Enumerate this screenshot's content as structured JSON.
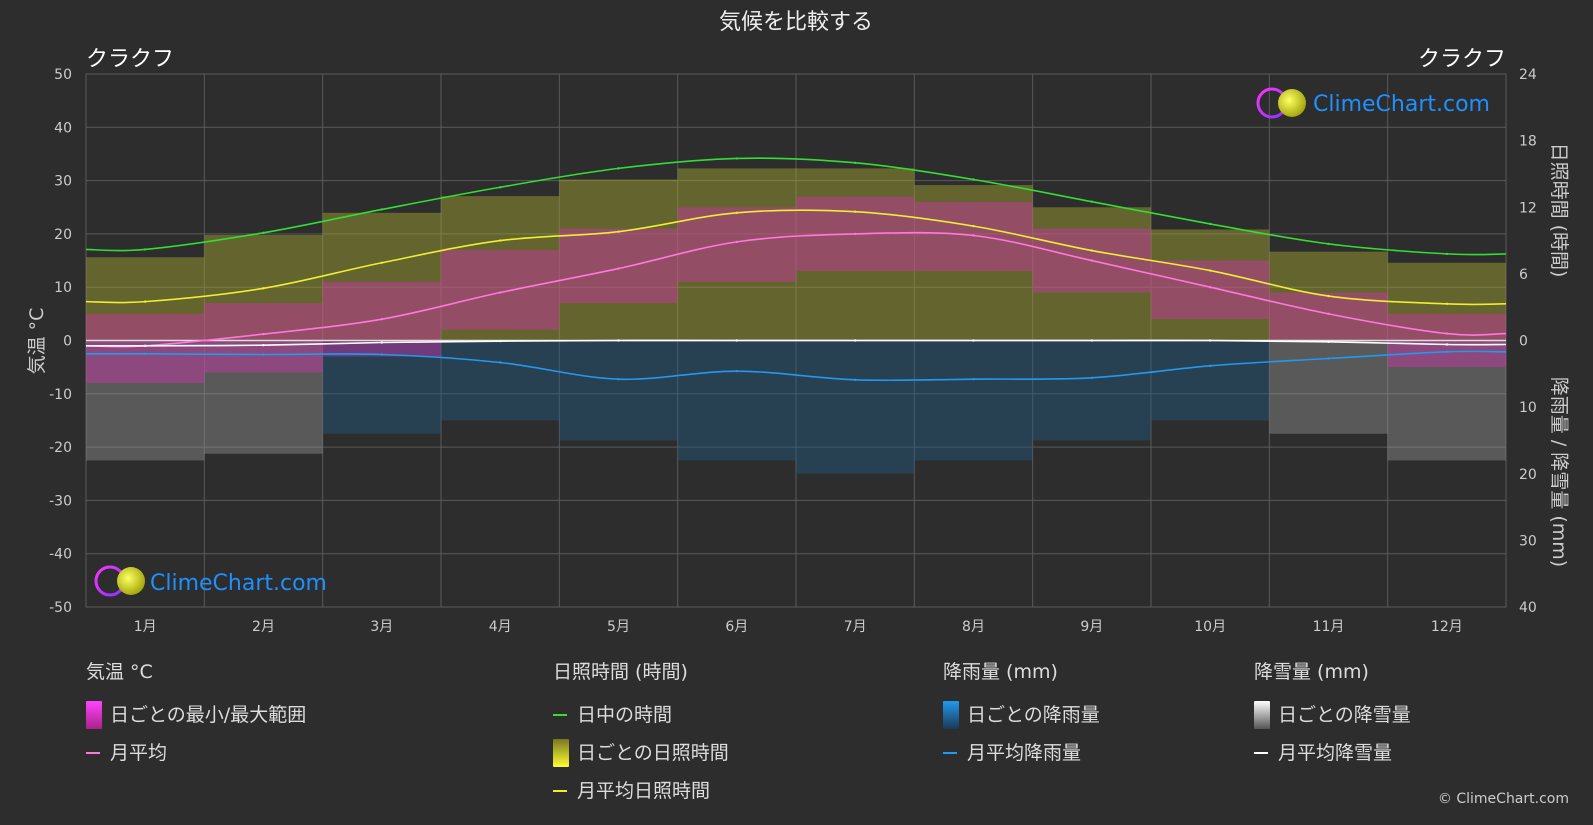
{
  "title": "気候を比較する",
  "location_left": "クラクフ",
  "location_right": "クラクフ",
  "brand": "ClimeChart.com",
  "copyright": "© ClimeChart.com",
  "colors": {
    "background": "#2d2d2d",
    "grid": "#5a5a5a",
    "daylight": "#33dd33",
    "sunshine_avg": "#eeee33",
    "sunshine_daily": "#a8a830",
    "temp_avg": "#ff77dd",
    "temp_range": "#cc33aa",
    "rain_avg": "#2299ee",
    "rain_daily": "#1d5c8a",
    "snow_avg": "#ffffff",
    "snow_daily": "#9a9a9a",
    "brand_text": "#1e90ff"
  },
  "legend": {
    "temp": {
      "heading": "気温 °C",
      "range": "日ごとの最小/最大範囲",
      "avg": "月平均"
    },
    "sun": {
      "heading": "日照時間 (時間)",
      "daylight": "日中の時間",
      "daily": "日ごとの日照時間",
      "avg": "月平均日照時間"
    },
    "rain": {
      "heading": "降雨量 (mm)",
      "daily": "日ごとの降雨量",
      "avg": "月平均降雨量"
    },
    "snow": {
      "heading": "降雪量 (mm)",
      "daily": "日ごとの降雪量",
      "avg": "月平均降雪量"
    }
  },
  "chart_data": {
    "type": "line",
    "title": "気候を比較する",
    "categories": [
      "1月",
      "2月",
      "3月",
      "4月",
      "5月",
      "6月",
      "7月",
      "8月",
      "9月",
      "10月",
      "11月",
      "12月"
    ],
    "axes": {
      "left": {
        "label": "気温 °C",
        "min": -50,
        "max": 50,
        "ticks": [
          50,
          40,
          30,
          20,
          10,
          0,
          -10,
          -20,
          -30,
          -40,
          -50
        ]
      },
      "right_top": {
        "label": "日照時間 (時間)",
        "min": 0,
        "max": 24,
        "ticks": [
          24,
          18,
          12,
          6,
          0
        ]
      },
      "right_bottom": {
        "label": "降雨量 / 降雪量 (mm)",
        "min": 0,
        "max": 40,
        "ticks": [
          0,
          10,
          20,
          30,
          40
        ]
      }
    },
    "grid": true,
    "series": [
      {
        "name": "日中の時間",
        "axis": "hours",
        "values": [
          8.2,
          9.7,
          11.8,
          13.8,
          15.5,
          16.4,
          16.0,
          14.5,
          12.5,
          10.5,
          8.7,
          7.8
        ]
      },
      {
        "name": "月平均日照時間",
        "axis": "hours",
        "values": [
          3.5,
          4.7,
          7.0,
          9.0,
          9.8,
          11.5,
          11.6,
          10.3,
          8.1,
          6.3,
          4.0,
          3.3
        ]
      },
      {
        "name": "月平均",
        "axis": "temp",
        "values": [
          -1.0,
          1.2,
          4.0,
          9.0,
          13.5,
          18.5,
          20.0,
          19.7,
          15.0,
          10.0,
          5.0,
          1.3
        ]
      },
      {
        "name": "月平均降雨量",
        "axis": "precip",
        "values": [
          2.0,
          2.1,
          2.1,
          3.3,
          5.8,
          4.6,
          5.9,
          5.8,
          5.6,
          3.8,
          2.7,
          1.7
        ]
      },
      {
        "name": "月平均降雪量",
        "axis": "precip",
        "values": [
          0.8,
          0.7,
          0.3,
          0.1,
          0.0,
          0.0,
          0.0,
          0.0,
          0.0,
          0.0,
          0.2,
          0.6
        ]
      }
    ],
    "daily_temp_range": {
      "min": [
        -8,
        -6,
        -3,
        2,
        7,
        11,
        13,
        13,
        9,
        4,
        0,
        -5
      ],
      "max": [
        5,
        7,
        11,
        17,
        21,
        25,
        27,
        26,
        21,
        15,
        9,
        5
      ]
    },
    "daily_sunshine_max": [
      7.5,
      9.5,
      11.5,
      13.0,
      14.5,
      15.5,
      15.5,
      14.0,
      12.0,
      10.0,
      8.0,
      7.0
    ],
    "daily_precip_max": [
      18,
      17,
      14,
      12,
      15,
      18,
      20,
      18,
      15,
      12,
      14,
      18
    ]
  }
}
